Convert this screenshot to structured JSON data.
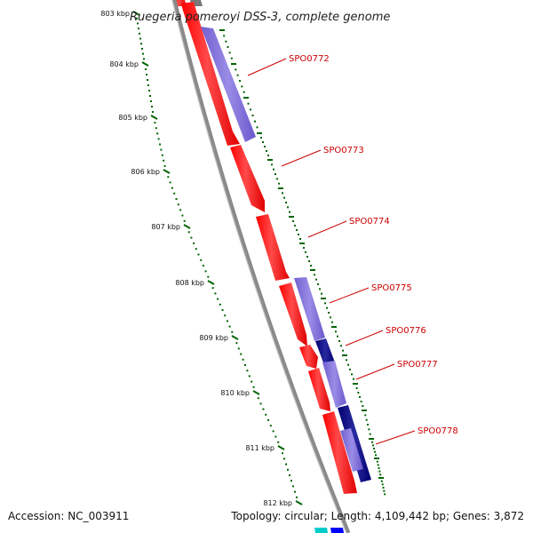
{
  "title": "Ruegeria pomeroyi DSS-3, complete genome",
  "footer": {
    "accession": "Accession: NC_003911",
    "summary": "Topology: circular; Length: 4,109,442 bp; Genes: 3,872"
  },
  "colors": {
    "backbone": "#8a8a8a",
    "forward_gene": "#ff0000",
    "reverse_gene_light": "#7b68d8",
    "reverse_gene_dark": "#000080",
    "tick": "#006400",
    "gene_label": "#cc0000",
    "top_cyan": "#00cccc",
    "top_blue": "#0000ff"
  },
  "ruler": {
    "ticks": [
      "803 kbp",
      "804 kbp",
      "805 kbp",
      "806 kbp",
      "807 kbp",
      "808 kbp",
      "809 kbp",
      "810 kbp",
      "811 kbp",
      "812 kbp"
    ]
  },
  "genes": [
    {
      "label": "SPO0772"
    },
    {
      "label": "SPO0773"
    },
    {
      "label": "SPO0774"
    },
    {
      "label": "SPO0775"
    },
    {
      "label": "SPO0776"
    },
    {
      "label": "SPO0777"
    },
    {
      "label": "SPO0778"
    }
  ]
}
